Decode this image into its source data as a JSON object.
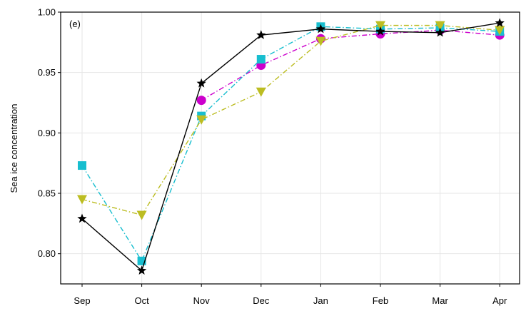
{
  "chart_data": {
    "type": "line",
    "panel_label": "(e)",
    "title": "",
    "xlabel": "",
    "ylabel": "Sea ice concentration",
    "categories": [
      "Sep",
      "Oct",
      "Nov",
      "Dec",
      "Jan",
      "Feb",
      "Mar",
      "Apr"
    ],
    "ylim": [
      0.775,
      1.0
    ],
    "yticks": [
      "0.80",
      "0.85",
      "0.90",
      "0.95",
      "1.00"
    ],
    "ytick_values": [
      0.8,
      0.85,
      0.9,
      0.95,
      1.0
    ],
    "grid": true,
    "legend": "none",
    "series": [
      {
        "color": "#cc00cc",
        "marker": "circle",
        "line_style": "dash-dot",
        "values": [
          null,
          null,
          0.927,
          0.956,
          0.978,
          0.982,
          0.985,
          0.981
        ]
      },
      {
        "color": "#17becf",
        "marker": "square",
        "line_style": "dash-dot",
        "values": [
          0.873,
          0.794,
          0.914,
          0.961,
          0.988,
          0.986,
          0.987,
          0.984
        ]
      },
      {
        "color": "#bcbd22",
        "marker": "triangle-down",
        "line_style": "dash-dot",
        "values": [
          0.845,
          0.832,
          0.911,
          0.934,
          0.976,
          0.989,
          0.989,
          0.985
        ]
      },
      {
        "color": "#000000",
        "marker": "star",
        "line_style": "solid",
        "values": [
          0.829,
          0.786,
          0.941,
          0.981,
          0.986,
          0.984,
          0.983,
          0.991
        ]
      }
    ]
  }
}
